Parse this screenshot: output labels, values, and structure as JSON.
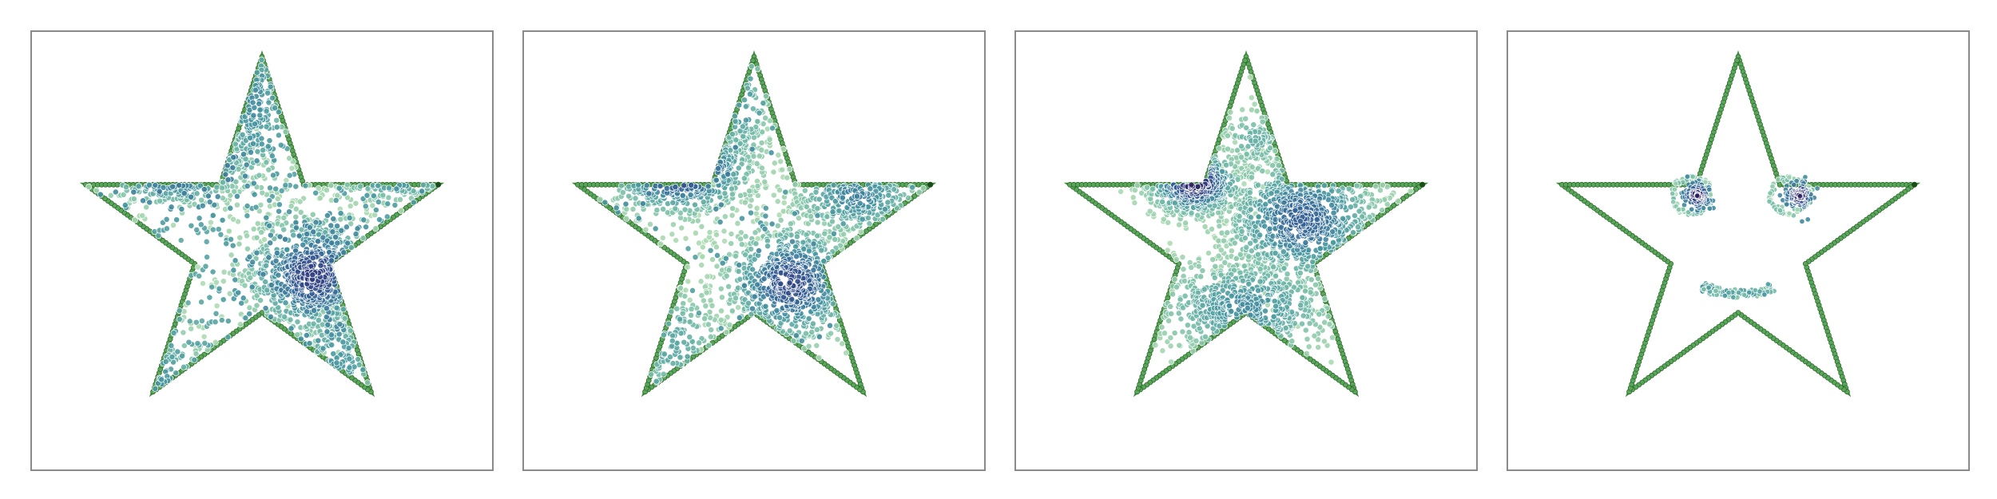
{
  "figure": {
    "colors": {
      "star_outline": "#3f8f3f",
      "star_marker_edge": "#2e6b2e",
      "star_tip": "#1a4d1a",
      "low_density": "#9fd3a8",
      "mid_density": "#4aa3a0",
      "high_density": "#3b6aa0",
      "peak_density": "#3c1d6e",
      "frame": "#8a8a8a"
    },
    "colormap": "crest",
    "point_edge": "white"
  },
  "chart_data": [
    {
      "type": "scatter",
      "boundary": "star",
      "clusters": [
        {
          "cx": -0.48,
          "cy": 0.42,
          "sx": 0.22,
          "sy": 0.12,
          "n": 900,
          "w": 1.0
        },
        {
          "cx": 0.28,
          "cy": -0.18,
          "sx": 0.2,
          "sy": 0.18,
          "n": 900,
          "w": 0.9
        },
        {
          "cx": 0.72,
          "cy": 0.38,
          "sx": 0.2,
          "sy": 0.09,
          "n": 500,
          "w": 0.7
        },
        {
          "cx": -0.05,
          "cy": 0.75,
          "sx": 0.12,
          "sy": 0.3,
          "n": 350,
          "w": 0.55
        },
        {
          "cx": -0.55,
          "cy": -0.75,
          "sx": 0.16,
          "sy": 0.18,
          "n": 320,
          "w": 0.5
        },
        {
          "cx": 0.4,
          "cy": -0.65,
          "sx": 0.14,
          "sy": 0.2,
          "n": 280,
          "w": 0.5
        }
      ],
      "uniform_fill": 1100
    },
    {
      "type": "scatter",
      "boundary": "star",
      "clusters": [
        {
          "cx": -0.4,
          "cy": 0.4,
          "sx": 0.22,
          "sy": 0.14,
          "n": 950,
          "w": 1.0
        },
        {
          "cx": 0.2,
          "cy": -0.22,
          "sx": 0.2,
          "sy": 0.18,
          "n": 850,
          "w": 0.85
        },
        {
          "cx": 0.55,
          "cy": 0.25,
          "sx": 0.2,
          "sy": 0.12,
          "n": 450,
          "w": 0.6
        },
        {
          "cx": -0.1,
          "cy": 0.75,
          "sx": 0.12,
          "sy": 0.25,
          "n": 300,
          "w": 0.45
        },
        {
          "cx": -0.45,
          "cy": -0.55,
          "sx": 0.18,
          "sy": 0.2,
          "n": 350,
          "w": 0.4
        }
      ],
      "uniform_fill": 250
    },
    {
      "type": "scatter",
      "boundary": "star",
      "clusters": [
        {
          "cx": -0.28,
          "cy": 0.32,
          "sx": 0.14,
          "sy": 0.1,
          "n": 700,
          "w": 1.0
        },
        {
          "cx": 0.3,
          "cy": 0.12,
          "sx": 0.24,
          "sy": 0.2,
          "n": 1100,
          "w": 0.75
        },
        {
          "cx": 0.0,
          "cy": -0.35,
          "sx": 0.28,
          "sy": 0.16,
          "n": 800,
          "w": 0.55
        },
        {
          "cx": 0.05,
          "cy": 0.55,
          "sx": 0.12,
          "sy": 0.1,
          "n": 150,
          "w": 0.35
        }
      ],
      "uniform_fill": 0
    },
    {
      "type": "scatter",
      "boundary": "star",
      "shapes": [
        {
          "kind": "eye",
          "cx": -0.25,
          "cy": 0.25,
          "r": 0.12,
          "pupil_dx": 0.03,
          "pupil_dy": 0.0
        },
        {
          "kind": "eye",
          "cx": 0.28,
          "cy": 0.25,
          "r": 0.12,
          "pupil_dx": 0.05,
          "pupil_dy": 0.0
        },
        {
          "kind": "smile",
          "cx": 0.0,
          "cy": -0.22,
          "rx": 0.2,
          "ry": 0.12
        }
      ]
    }
  ]
}
